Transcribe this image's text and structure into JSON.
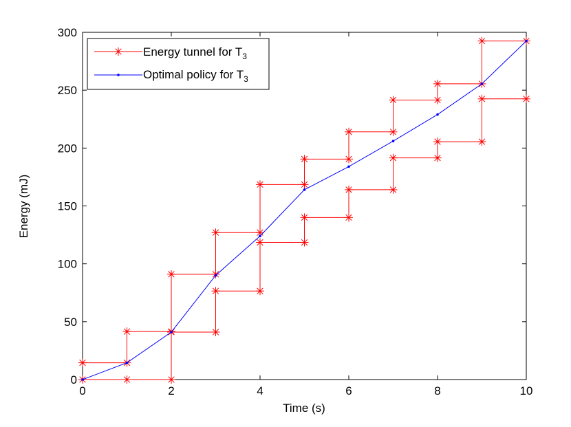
{
  "chart_data": {
    "type": "line",
    "title": "",
    "xlabel": "Time (s)",
    "ylabel": "Energy (mJ)",
    "xlim": [
      0,
      10
    ],
    "ylim": [
      0,
      300
    ],
    "xticks": [
      0,
      2,
      4,
      6,
      8,
      10
    ],
    "yticks": [
      0,
      50,
      100,
      150,
      200,
      250,
      300
    ],
    "grid": false,
    "legend_position": "top-left",
    "legend": [
      {
        "label_main": "Energy tunnel for T",
        "label_sub": "3"
      },
      {
        "label_main": "Optimal policy for T",
        "label_sub": "3"
      }
    ],
    "series": [
      {
        "name": "Energy tunnel for T3 (upper bound)",
        "color": "#ff0000",
        "marker": "star",
        "x": [
          0,
          1,
          1,
          2,
          2,
          3,
          3,
          4,
          4,
          5,
          5,
          6,
          6,
          7,
          7,
          8,
          8,
          9,
          9,
          10
        ],
        "y": [
          14.5,
          14.5,
          41.5,
          41.5,
          91,
          91,
          127,
          127,
          168.5,
          168.5,
          190.5,
          190.5,
          214,
          214,
          241.5,
          241.5,
          255.5,
          255.5,
          292.5,
          292.5
        ]
      },
      {
        "name": "Energy tunnel for T3 (lower bound)",
        "color": "#ff0000",
        "marker": "star",
        "x": [
          0,
          1,
          2,
          2,
          3,
          3,
          4,
          4,
          5,
          5,
          6,
          6,
          7,
          7,
          8,
          8,
          9,
          9,
          10
        ],
        "y": [
          0,
          0,
          0,
          41,
          41,
          76.5,
          76.5,
          118.5,
          118.5,
          140,
          140,
          164,
          164,
          191.5,
          191.5,
          205.5,
          205.5,
          242.5,
          242.5
        ]
      },
      {
        "name": "Optimal policy for T3",
        "color": "#0000ff",
        "marker": "dot",
        "x": [
          0,
          1,
          2,
          3,
          4,
          5,
          6,
          7,
          8,
          9,
          10
        ],
        "y": [
          0,
          14.5,
          41,
          90,
          124,
          164,
          184,
          206,
          229,
          255.5,
          292.5
        ]
      }
    ]
  }
}
